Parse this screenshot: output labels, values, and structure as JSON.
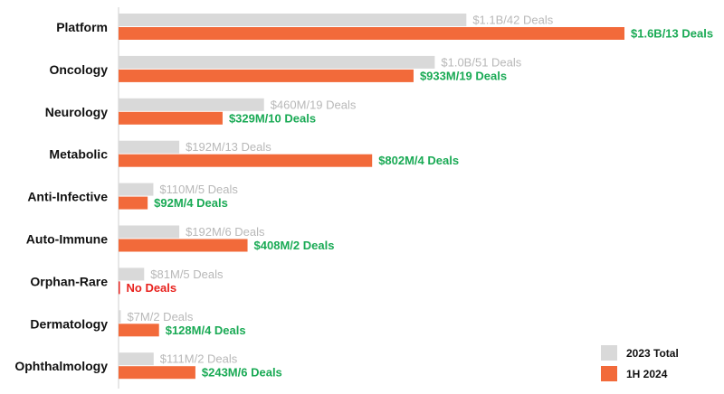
{
  "chart_data": {
    "type": "bar",
    "orientation": "horizontal",
    "categories": [
      "Platform",
      "Oncology",
      "Neurology",
      "Metabolic",
      "Anti-Infective",
      "Auto-Immune",
      "Orphan-Rare",
      "Dermatology",
      "Ophthalmology"
    ],
    "series": [
      {
        "name": "2023 Total",
        "color": "#d9d9d9",
        "label_color": "#b8b8b8",
        "values_musd": [
          1100,
          1000,
          460,
          192,
          110,
          192,
          81,
          7,
          111
        ],
        "labels": [
          "$1.1B/42 Deals",
          "$1.0B/51 Deals",
          "$460M/19 Deals",
          "$192M/13 Deals",
          "$110M/5 Deals",
          "$192M/6 Deals",
          "$81M/5 Deals",
          "$7M/2 Deals",
          "$111M/2 Deals"
        ]
      },
      {
        "name": "1H 2024",
        "color": "#f26a3a",
        "label_color": "#1aaa55",
        "no_deals_color": "#e8231f",
        "values_musd": [
          1600,
          933,
          329,
          802,
          92,
          408,
          0,
          128,
          243
        ],
        "labels": [
          "$1.6B/13 Deals",
          "$933M/19 Deals",
          "$329M/10 Deals",
          "$802M/4 Deals",
          "$92M/4 Deals",
          "$408M/2 Deals",
          "No Deals",
          "$128M/4 Deals",
          "$243M/6 Deals"
        ]
      }
    ],
    "xlim": [
      0,
      1600
    ],
    "legend_position": "bottom-right",
    "grid": false
  }
}
